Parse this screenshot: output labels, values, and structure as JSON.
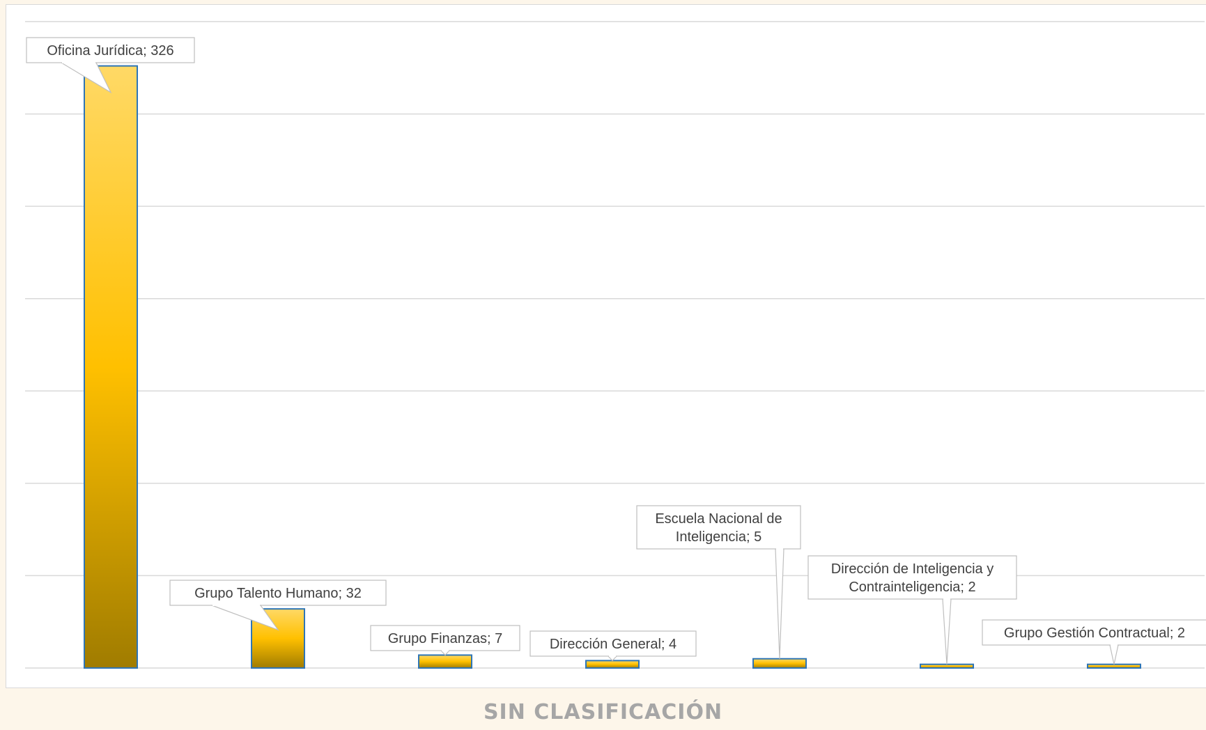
{
  "chart_data": {
    "type": "bar",
    "title": "SIN CLASIFICACIÓN",
    "categories": [
      "Oficina Jurídica",
      "Grupo Talento Humano",
      "Grupo Finanzas",
      "Dirección General",
      "Escuela Nacional de Inteligencia",
      "Dirección de Inteligencia y Contrainteligencia",
      "Grupo Gestión Contractual"
    ],
    "values": [
      326,
      32,
      7,
      4,
      5,
      2,
      2
    ],
    "data_labels": [
      [
        "Oficina Jurídica; 326"
      ],
      [
        "Grupo Talento Humano; 32"
      ],
      [
        "Grupo Finanzas; 7"
      ],
      [
        "Dirección General; 4"
      ],
      [
        "Escuela Nacional de",
        "Inteligencia; 5"
      ],
      [
        "Dirección de Inteligencia y",
        "Contrainteligencia; 2"
      ],
      [
        "Grupo Gestión Contractual; 2"
      ]
    ],
    "ylim": [
      0,
      350
    ],
    "grid": true,
    "bar_gradient": [
      "#ffd966",
      "#ffc000",
      "#a07c00"
    ],
    "bar_border_color": "#2e75b6"
  }
}
